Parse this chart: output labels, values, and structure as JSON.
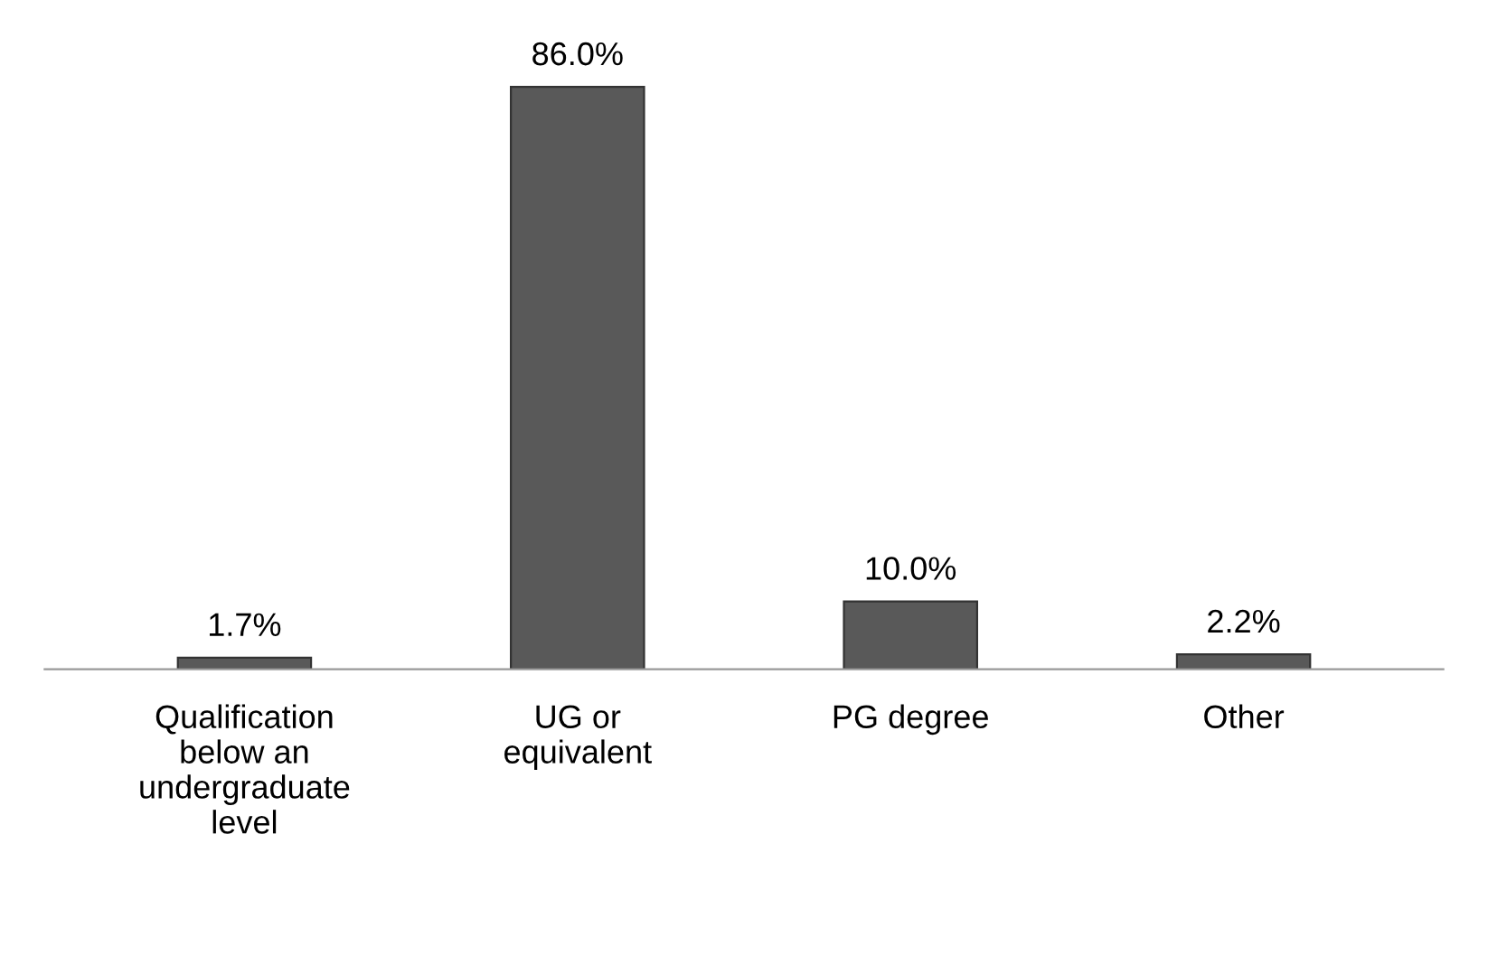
{
  "chart_data": {
    "type": "bar",
    "categories": [
      "Qualification\nbelow an\nundergraduate\nlevel",
      "UG or\nequivalent",
      "PG degree",
      "Other"
    ],
    "values": [
      1.7,
      86.0,
      10.0,
      2.2
    ],
    "value_labels": [
      "1.7%",
      "86.0%",
      "10.0%",
      "2.2%"
    ],
    "color": "#595959",
    "tick_labels": "x",
    "grid": false,
    "legend": false
  }
}
